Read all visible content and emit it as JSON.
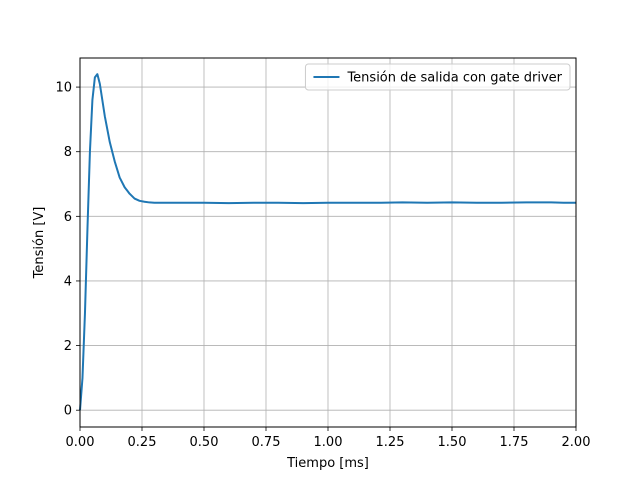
{
  "chart_data": {
    "type": "line",
    "xlabel": "Tiempo [ms]",
    "ylabel": "Tensión [V]",
    "xlim": [
      0,
      2.0
    ],
    "ylim": [
      -0.52,
      10.9
    ],
    "xticks": [
      "0.00",
      "0.25",
      "0.50",
      "0.75",
      "1.00",
      "1.25",
      "1.50",
      "1.75",
      "2.00"
    ],
    "yticks": [
      "0",
      "2",
      "4",
      "6",
      "8",
      "10"
    ],
    "grid": true,
    "legend_position": "top-right",
    "series": [
      {
        "name": "Tensión de salida con gate driver",
        "color": "#1f77b4",
        "x": [
          0.0,
          0.01,
          0.02,
          0.03,
          0.04,
          0.05,
          0.06,
          0.07,
          0.08,
          0.09,
          0.1,
          0.12,
          0.14,
          0.16,
          0.18,
          0.2,
          0.22,
          0.24,
          0.26,
          0.28,
          0.3,
          0.35,
          0.4,
          0.5,
          0.6,
          0.7,
          0.8,
          0.9,
          1.0,
          1.1,
          1.2,
          1.3,
          1.4,
          1.5,
          1.6,
          1.7,
          1.8,
          1.9,
          1.95,
          2.0
        ],
        "y": [
          0.0,
          1.0,
          3.0,
          5.6,
          8.0,
          9.6,
          10.3,
          10.4,
          10.1,
          9.6,
          9.1,
          8.3,
          7.7,
          7.2,
          6.9,
          6.7,
          6.55,
          6.48,
          6.45,
          6.43,
          6.42,
          6.42,
          6.42,
          6.42,
          6.41,
          6.42,
          6.42,
          6.41,
          6.42,
          6.42,
          6.42,
          6.43,
          6.42,
          6.43,
          6.42,
          6.42,
          6.43,
          6.43,
          6.42,
          6.42
        ]
      }
    ]
  }
}
